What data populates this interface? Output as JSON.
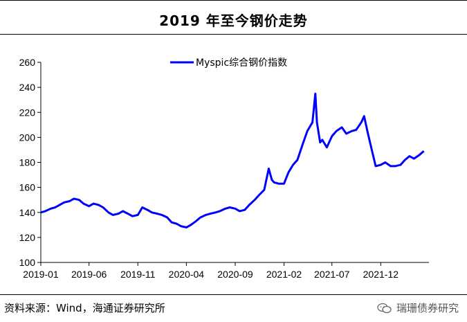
{
  "header": {
    "title": "2019 年至今钢价走势"
  },
  "footer": {
    "source": "资料来源：Wind，海通证券研究所",
    "watermark": "瑞珊债券研究",
    "watermark_icon": "wechat-icon"
  },
  "chart_data": {
    "type": "line",
    "title": "",
    "xlabel": "",
    "ylabel": "",
    "ylim": [
      100,
      260
    ],
    "yticks": [
      100,
      120,
      140,
      160,
      180,
      200,
      220,
      240,
      260
    ],
    "xlim": [
      "2019-01",
      "2022-05"
    ],
    "xticks": [
      "2019-01",
      "2019-06",
      "2019-11",
      "2020-04",
      "2020-09",
      "2021-02",
      "2021-07",
      "2021-12"
    ],
    "grid": false,
    "legend_position": "top-center",
    "series": [
      {
        "name": "Myspic综合钢价指数",
        "color": "#0000ff",
        "x": [
          "2019-01-01",
          "2019-01-15",
          "2019-02-01",
          "2019-02-15",
          "2019-03-01",
          "2019-03-15",
          "2019-04-01",
          "2019-04-15",
          "2019-05-01",
          "2019-05-15",
          "2019-06-01",
          "2019-06-15",
          "2019-07-01",
          "2019-07-15",
          "2019-08-01",
          "2019-08-15",
          "2019-09-01",
          "2019-09-15",
          "2019-10-01",
          "2019-10-15",
          "2019-11-01",
          "2019-11-15",
          "2019-12-01",
          "2019-12-15",
          "2020-01-01",
          "2020-01-15",
          "2020-02-01",
          "2020-02-15",
          "2020-03-01",
          "2020-03-15",
          "2020-04-01",
          "2020-04-15",
          "2020-05-01",
          "2020-05-15",
          "2020-06-01",
          "2020-06-15",
          "2020-07-01",
          "2020-07-15",
          "2020-08-01",
          "2020-08-15",
          "2020-09-01",
          "2020-09-15",
          "2020-10-01",
          "2020-10-15",
          "2020-11-01",
          "2020-11-15",
          "2020-12-01",
          "2020-12-15",
          "2020-12-25",
          "2021-01-01",
          "2021-01-15",
          "2021-02-01",
          "2021-02-15",
          "2021-03-01",
          "2021-03-15",
          "2021-04-01",
          "2021-04-15",
          "2021-05-01",
          "2021-05-10",
          "2021-05-15",
          "2021-05-25",
          "2021-06-01",
          "2021-06-15",
          "2021-07-01",
          "2021-07-15",
          "2021-08-01",
          "2021-08-15",
          "2021-09-01",
          "2021-09-15",
          "2021-10-01",
          "2021-10-10",
          "2021-10-20",
          "2021-11-01",
          "2021-11-15",
          "2021-12-01",
          "2021-12-15",
          "2022-01-01",
          "2022-01-15",
          "2022-02-01",
          "2022-02-15",
          "2022-03-01",
          "2022-03-15",
          "2022-04-01",
          "2022-04-15"
        ],
        "y": [
          140,
          141,
          143,
          144,
          146,
          148,
          149,
          151,
          150,
          147,
          145,
          147,
          146,
          144,
          140,
          138,
          139,
          141,
          139,
          137,
          138,
          144,
          142,
          140,
          139,
          138,
          136,
          132,
          131,
          129,
          128,
          130,
          133,
          136,
          138,
          139,
          140,
          141,
          143,
          144,
          143,
          141,
          142,
          146,
          150,
          154,
          158,
          175,
          166,
          164,
          163,
          163,
          172,
          178,
          182,
          195,
          205,
          212,
          235,
          212,
          196,
          198,
          192,
          201,
          205,
          208,
          203,
          205,
          206,
          212,
          217,
          205,
          192,
          177,
          178,
          180,
          177,
          177,
          178,
          182,
          185,
          183,
          186,
          189
        ]
      }
    ]
  }
}
